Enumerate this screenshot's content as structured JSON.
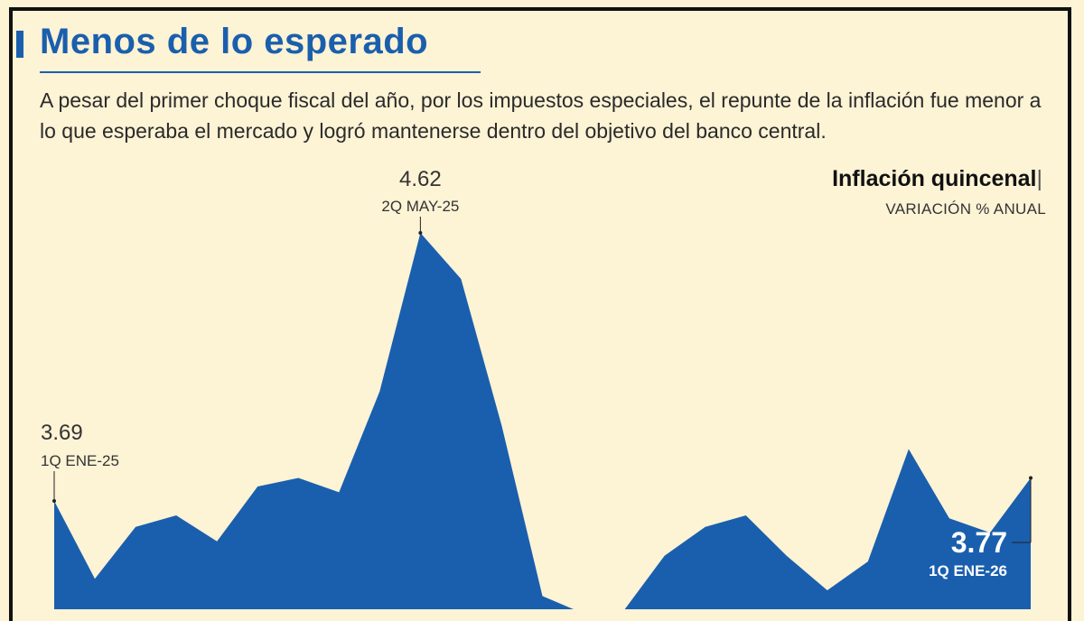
{
  "header": {
    "title": "Menos de lo esperado",
    "subtitle": "A pesar del primer choque fiscal del año, por los impuestos especiales, el repunte de la inflación fue menor a lo que esperaba el mercado y logró mantenerse dentro del objetivo del banco central."
  },
  "chart_data": {
    "type": "area",
    "title": "Inflación quincenal",
    "title_suffix": "|",
    "ylabel": "VARIACIÓN % ANUAL",
    "xlabel": "",
    "grid": false,
    "legend": "none",
    "area_color": "#1a5fad",
    "values": [
      3.69,
      3.42,
      3.6,
      3.64,
      3.55,
      3.74,
      3.77,
      3.72,
      4.07,
      4.62,
      4.46,
      3.95,
      3.36,
      3.3,
      3.31,
      3.5,
      3.6,
      3.64,
      3.5,
      3.38,
      3.48,
      3.87,
      3.63,
      3.58,
      3.77
    ],
    "annotations": [
      {
        "index": 0,
        "value": "3.69",
        "label": "1Q ENE-25"
      },
      {
        "index": 9,
        "value": "4.62",
        "label": "2Q MAY-25"
      },
      {
        "index": 24,
        "value": "3.77",
        "label": "1Q ENE-26"
      }
    ]
  }
}
